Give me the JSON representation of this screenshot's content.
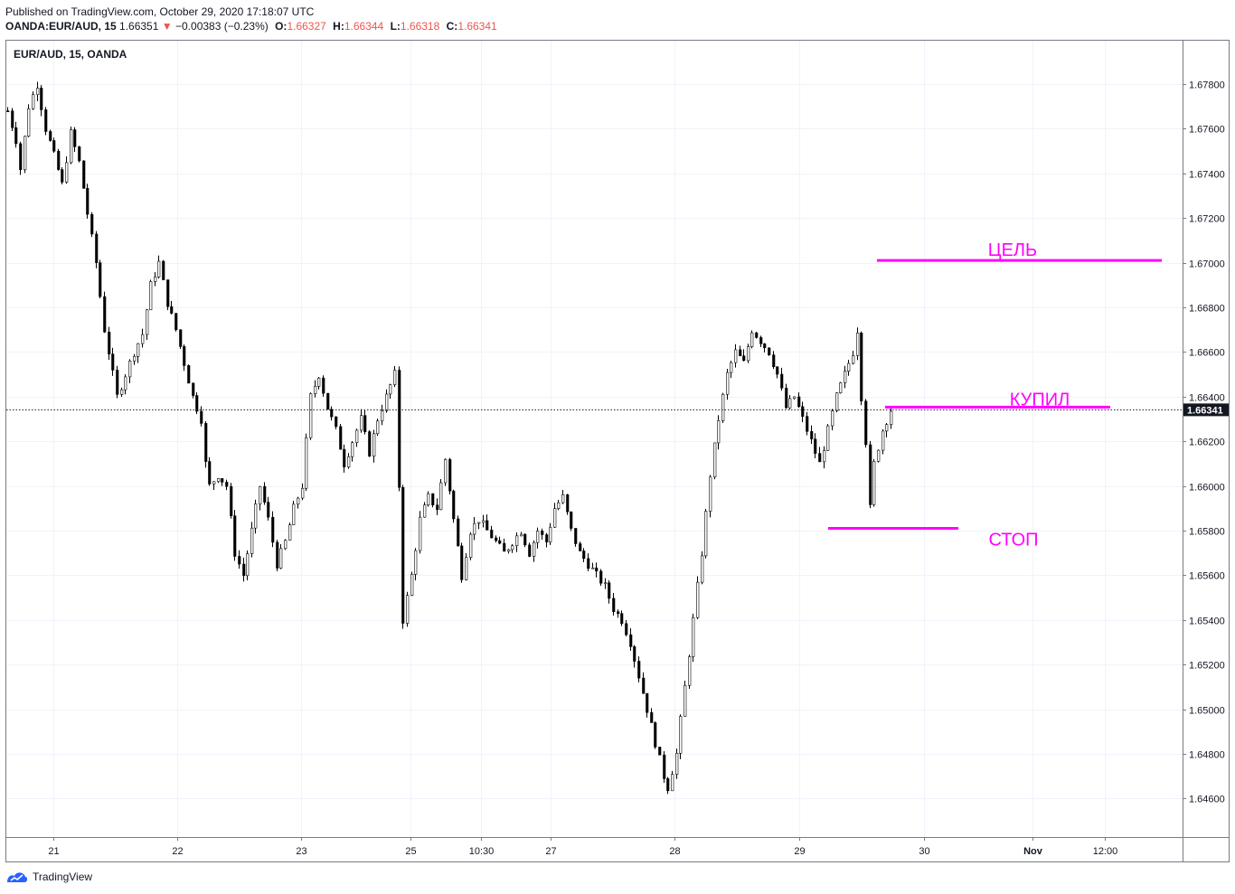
{
  "header": {
    "published": "Published on TradingView.com, October 29, 2020 17:18:07 UTC",
    "symbol": "OANDA:EUR/AUD, 15",
    "last": "1.66351",
    "change_arrow": "▼",
    "change": "−0.00383 (−0.23%)",
    "o_label": "O:",
    "o": "1.66327",
    "h_label": "H:",
    "h": "1.66344",
    "l_label": "L:",
    "l": "1.66318",
    "c_label": "C:",
    "c": "1.66341"
  },
  "pane_title": "EUR/AUD, 15, OANDA",
  "footer": {
    "brand": "TradingView",
    "logo_icon": "tradingview-logo-icon"
  },
  "colors": {
    "candle": "#000000",
    "annotation": "#ff00ff",
    "grid": "#f0f3fa",
    "price_tag_bg": "#131722"
  },
  "chart_data": {
    "type": "candlestick",
    "title": "EUR/AUD, 15, OANDA",
    "xlabel": "",
    "ylabel": "",
    "ylim": [
      1.6452,
      1.6798
    ],
    "y_ticks": [
      "1.67800",
      "1.67600",
      "1.67400",
      "1.67200",
      "1.67000",
      "1.66800",
      "1.66600",
      "1.66400",
      "1.66200",
      "1.66000",
      "1.65800",
      "1.65600",
      "1.65400",
      "1.65200",
      "1.65000",
      "1.64800",
      "1.64600"
    ],
    "x_ticks": [
      "21",
      "22",
      "23",
      "25",
      "10:30",
      "27",
      "28",
      "29",
      "30",
      "Nov",
      "12:00"
    ],
    "grid": true,
    "last_price": "1.66341",
    "price_path": [
      [
        0,
        1.6768
      ],
      [
        2,
        1.6755
      ],
      [
        3,
        1.6742
      ],
      [
        5,
        1.677
      ],
      [
        7,
        1.678
      ],
      [
        9,
        1.676
      ],
      [
        11,
        1.6748
      ],
      [
        13,
        1.6735
      ],
      [
        15,
        1.6758
      ],
      [
        17,
        1.6745
      ],
      [
        19,
        1.6722
      ],
      [
        21,
        1.67
      ],
      [
        23,
        1.667
      ],
      [
        25,
        1.665
      ],
      [
        26,
        1.664
      ],
      [
        28,
        1.665
      ],
      [
        30,
        1.666
      ],
      [
        32,
        1.6668
      ],
      [
        34,
        1.669
      ],
      [
        36,
        1.67
      ],
      [
        38,
        1.6682
      ],
      [
        40,
        1.667
      ],
      [
        42,
        1.6655
      ],
      [
        44,
        1.664
      ],
      [
        46,
        1.663
      ],
      [
        47,
        1.661
      ],
      [
        48,
        1.66
      ],
      [
        50,
        1.6605
      ],
      [
        52,
        1.66
      ],
      [
        54,
        1.657
      ],
      [
        56,
        1.656
      ],
      [
        58,
        1.658
      ],
      [
        60,
        1.66
      ],
      [
        62,
        1.6585
      ],
      [
        64,
        1.6565
      ],
      [
        66,
        1.6575
      ],
      [
        68,
        1.659
      ],
      [
        70,
        1.66
      ],
      [
        72,
        1.664
      ],
      [
        74,
        1.665
      ],
      [
        76,
        1.6635
      ],
      [
        78,
        1.6625
      ],
      [
        80,
        1.661
      ],
      [
        82,
        1.662
      ],
      [
        84,
        1.663
      ],
      [
        86,
        1.6615
      ],
      [
        88,
        1.663
      ],
      [
        90,
        1.664
      ],
      [
        92,
        1.665
      ],
      [
        93,
        1.66
      ],
      [
        94,
        1.654
      ],
      [
        96,
        1.656
      ],
      [
        98,
        1.6585
      ],
      [
        100,
        1.6595
      ],
      [
        102,
        1.659
      ],
      [
        104,
        1.6612
      ],
      [
        106,
        1.6585
      ],
      [
        108,
        1.656
      ],
      [
        110,
        1.658
      ],
      [
        112,
        1.6585
      ],
      [
        114,
        1.658
      ],
      [
        116,
        1.6575
      ],
      [
        118,
        1.657
      ],
      [
        120,
        1.6575
      ],
      [
        122,
        1.658
      ],
      [
        124,
        1.657
      ],
      [
        126,
        1.658
      ],
      [
        128,
        1.6575
      ],
      [
        130,
        1.659
      ],
      [
        132,
        1.6595
      ],
      [
        134,
        1.658
      ],
      [
        136,
        1.657
      ],
      [
        138,
        1.6565
      ],
      [
        140,
        1.656
      ],
      [
        142,
        1.6555
      ],
      [
        144,
        1.6545
      ],
      [
        146,
        1.654
      ],
      [
        148,
        1.653
      ],
      [
        150,
        1.6515
      ],
      [
        152,
        1.65
      ],
      [
        154,
        1.6485
      ],
      [
        156,
        1.647
      ],
      [
        157,
        1.6465
      ],
      [
        159,
        1.648
      ],
      [
        161,
        1.651
      ],
      [
        163,
        1.654
      ],
      [
        165,
        1.657
      ],
      [
        167,
        1.6605
      ],
      [
        169,
        1.663
      ],
      [
        171,
        1.665
      ],
      [
        173,
        1.666
      ],
      [
        175,
        1.6655
      ],
      [
        177,
        1.667
      ],
      [
        179,
        1.6665
      ],
      [
        181,
        1.666
      ],
      [
        183,
        1.665
      ],
      [
        185,
        1.6635
      ],
      [
        187,
        1.664
      ],
      [
        189,
        1.663
      ],
      [
        191,
        1.662
      ],
      [
        193,
        1.661
      ],
      [
        195,
        1.6625
      ],
      [
        197,
        1.664
      ],
      [
        199,
        1.665
      ],
      [
        201,
        1.666
      ],
      [
        202,
        1.667
      ],
      [
        203,
        1.664
      ],
      [
        204,
        1.662
      ],
      [
        205,
        1.659
      ],
      [
        206,
        1.661
      ],
      [
        208,
        1.6625
      ],
      [
        210,
        1.6634
      ]
    ],
    "annotations": [
      {
        "label": "ЦЕЛЬ",
        "price": 1.6701
      },
      {
        "label": "КУПИЛ",
        "price": 1.66353
      },
      {
        "label": "СТОП",
        "price": 1.6581
      }
    ]
  }
}
